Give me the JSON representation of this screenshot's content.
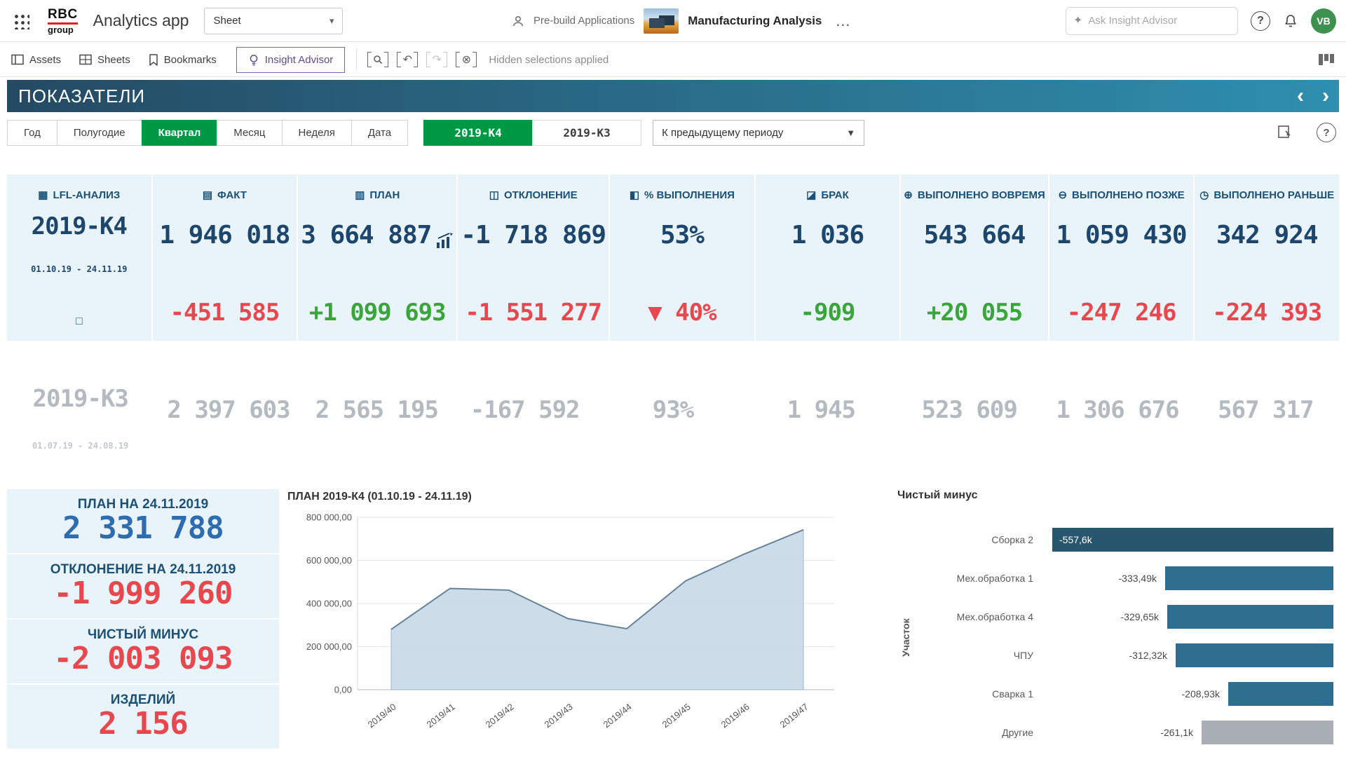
{
  "header": {
    "logo_top": "RBC",
    "logo_bottom": "group",
    "app_title": "Analytics app",
    "sheet_selector": "Sheet",
    "prebuild_label": "Pre-build Applications",
    "doc_title": "Manufacturing Analysis",
    "search_placeholder": "Ask Insight Advisor",
    "avatar_initials": "VB"
  },
  "toolbar": {
    "assets": "Assets",
    "sheets": "Sheets",
    "bookmarks": "Bookmarks",
    "insight_advisor": "Insight Advisor",
    "hidden_selections": "Hidden selections applied"
  },
  "titlebar": {
    "title": "ПОКАЗАТЕЛИ"
  },
  "filters": {
    "period_buttons": [
      "Год",
      "Полугодие",
      "Квартал",
      "Месяц",
      "Неделя",
      "Дата"
    ],
    "selected_period": "Квартал",
    "quarter_tabs": [
      "2019-К4",
      "2019-К3"
    ],
    "selected_quarter": "2019-К4",
    "compare_dropdown": "К предыдущему периоду"
  },
  "icons": {
    "chevron_down": "▾",
    "dropdown_caret": "▼",
    "ellipsis": "…",
    "sparkle": "✦",
    "undo": "↶",
    "redo": "↷",
    "clear_selection": "⊗",
    "prev_chevron": "‹",
    "next_chevron": "›",
    "help": "?",
    "lfl_detail": "◻"
  },
  "kpi": {
    "lfl": {
      "icon": "▦",
      "title": "LFL-АНАЛИЗ",
      "period": "2019-К4",
      "range": "01.10.19 - 24.11.19"
    },
    "cards": [
      {
        "icon": "▤",
        "title": "ФАКТ",
        "value": "1 946 018",
        "delta": "-451 585",
        "delta_color": "red"
      },
      {
        "icon": "▥",
        "title": "ПЛАН",
        "value": "3 664 887",
        "delta": "+1 099 693",
        "delta_color": "green"
      },
      {
        "icon": "◫",
        "title": "ОТКЛОНЕНИЕ",
        "value": "-1 718 869",
        "delta": "-1 551 277",
        "delta_color": "red"
      },
      {
        "icon": "◧",
        "title": "% ВЫПОЛНЕНИЯ",
        "value": "53%",
        "delta": "▼ 40%",
        "delta_color": "red"
      },
      {
        "icon": "◪",
        "title": "БРАК",
        "value": "1 036",
        "delta": "-909",
        "delta_color": "green"
      },
      {
        "icon": "⊕",
        "title": "ВЫПОЛНЕНО ВОВРЕМЯ",
        "value": "543 664",
        "delta": "+20 055",
        "delta_color": "green"
      },
      {
        "icon": "⊖",
        "title": "ВЫПОЛНЕНО ПОЗЖЕ",
        "value": "1 059 430",
        "delta": "-247 246",
        "delta_color": "red"
      },
      {
        "icon": "◷",
        "title": "ВЫПОЛНЕНО РАНЬШЕ",
        "value": "342 924",
        "delta": "-224 393",
        "delta_color": "red"
      }
    ],
    "prev": {
      "period": "2019-К3",
      "range": "01.07.19 - 24.08.19",
      "values": [
        "2 397 603",
        "2 565 195",
        "-167 592",
        "93%",
        "1 945",
        "523 609",
        "1 306 676",
        "567 317"
      ]
    }
  },
  "left_cards": [
    {
      "label": "ПЛАН НА 24.11.2019",
      "value": "2 331 788",
      "color": "blue"
    },
    {
      "label": "ОТКЛОНЕНИЕ НА 24.11.2019",
      "value": "-1 999 260",
      "color": "red"
    },
    {
      "label": "ЧИСТЫЙ МИНУС",
      "value": "-2 003 093",
      "color": "red"
    },
    {
      "label": "ИЗДЕЛИЙ",
      "value": "2 156",
      "color": "red"
    }
  ],
  "chart_data": [
    {
      "type": "area",
      "title": "ПЛАН 2019-К4 (01.10.19 - 24.11.19)",
      "x": [
        "2019/40",
        "2019/41",
        "2019/42",
        "2019/43",
        "2019/44",
        "2019/45",
        "2019/46",
        "2019/47"
      ],
      "values": [
        280000,
        470000,
        462000,
        330000,
        283000,
        505000,
        630000,
        742000
      ],
      "ylim": [
        0,
        800000
      ],
      "yticks": [
        "0,00",
        "200 000,00",
        "400 000,00",
        "600 000,00",
        "800 000,00"
      ],
      "grid": true,
      "fill_color": "#c7d8e6",
      "line_color": "#66839b"
    },
    {
      "type": "bar",
      "orientation": "horizontal",
      "title": "Чистый минус",
      "ylabel": "Участок",
      "categories": [
        "Сборка 2",
        "Мех.обработка 1",
        "Мех.обработка 4",
        "ЧПУ",
        "Сварка 1",
        "Другие"
      ],
      "values": [
        -557.6,
        -333.49,
        -329.65,
        -312.32,
        -208.93,
        -261.1
      ],
      "labels": [
        "-557,6k",
        "-333,49k",
        "-329,65k",
        "-312,32k",
        "-208,93k",
        "-261,1k"
      ],
      "bar_colors": [
        "#27576f",
        "#2e6e8e",
        "#2e6e8e",
        "#2e6e8e",
        "#2e6e8e",
        "#a9aeb4"
      ],
      "xlim": [
        -600,
        0
      ]
    }
  ],
  "colors": {
    "accent_green": "#009845",
    "navy_title": "#1c5175",
    "navy_value": "#1c466b",
    "red": "#e8474d",
    "green": "#3aa53a",
    "kpi_bg": "#e8f3fa",
    "titlebar_gradient_left": "#254a63",
    "titlebar_gradient_right": "#2e8fae",
    "bar_blue": "#2e6e8e",
    "bar_gray": "#a9aeb4"
  }
}
